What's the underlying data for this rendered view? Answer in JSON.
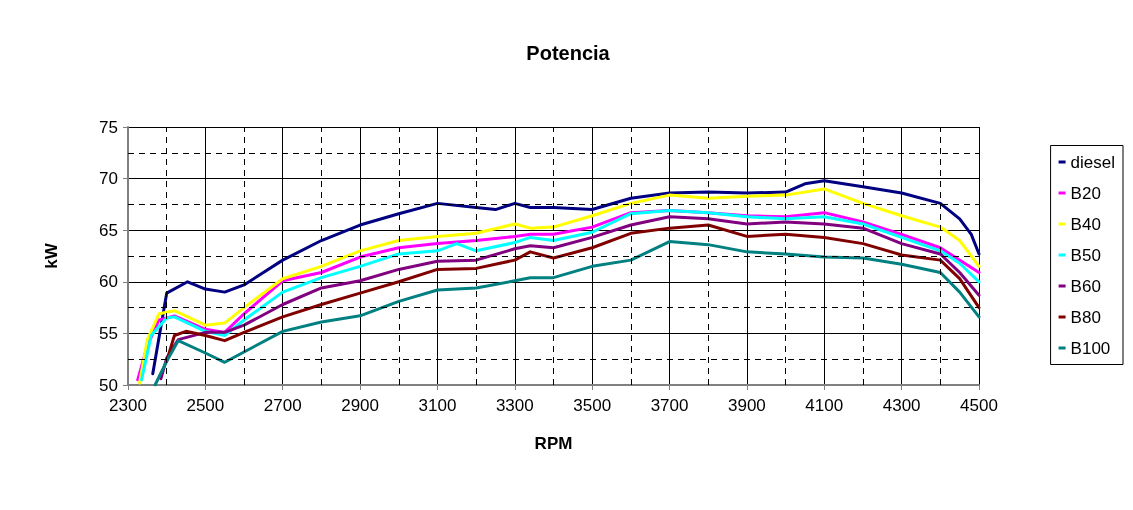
{
  "chart_data": {
    "type": "line",
    "title": "Potencia",
    "xlabel": "RPM",
    "ylabel": "kW",
    "xlim": [
      2300,
      4500
    ],
    "ylim": [
      50,
      75
    ],
    "xticks": [
      2300,
      2500,
      2700,
      2900,
      3100,
      3300,
      3500,
      3700,
      3900,
      4100,
      4300,
      4500
    ],
    "yticks": [
      50,
      55,
      60,
      65,
      70,
      75
    ],
    "grid": true,
    "legend": "right",
    "marker": "none",
    "series": [
      {
        "name": "diesel",
        "color": "#000080",
        "x": [
          2364,
          2400,
          2454,
          2500,
          2550,
          2600,
          2700,
          2800,
          2900,
          3000,
          3100,
          3200,
          3250,
          3300,
          3340,
          3400,
          3500,
          3600,
          3700,
          3800,
          3900,
          4000,
          4050,
          4100,
          4200,
          4300,
          4400,
          4450,
          4480,
          4500
        ],
        "values": [
          51.1,
          58.9,
          60.0,
          59.3,
          59.0,
          59.7,
          62.1,
          64.0,
          65.5,
          66.6,
          67.6,
          67.2,
          67.0,
          67.6,
          67.2,
          67.2,
          67.0,
          68.1,
          68.6,
          68.7,
          68.6,
          68.7,
          69.5,
          69.8,
          69.2,
          68.6,
          67.6,
          66.1,
          64.6,
          62.7
        ]
      },
      {
        "name": "B20",
        "color": "#ff00ff",
        "x": [
          2325,
          2350,
          2380,
          2420,
          2500,
          2550,
          2600,
          2700,
          2800,
          2900,
          3000,
          3100,
          3200,
          3300,
          3340,
          3400,
          3500,
          3600,
          3700,
          3800,
          3900,
          4000,
          4100,
          4200,
          4300,
          4400,
          4500
        ],
        "values": [
          50.5,
          53.8,
          56.3,
          56.7,
          55.4,
          55.1,
          56.9,
          60.1,
          60.9,
          62.4,
          63.3,
          63.7,
          64.0,
          64.4,
          64.6,
          64.6,
          65.3,
          66.7,
          66.9,
          66.7,
          66.4,
          66.3,
          66.7,
          65.8,
          64.6,
          63.3,
          60.9
        ]
      },
      {
        "name": "B40",
        "color": "#ffff00",
        "x": [
          2330,
          2350,
          2380,
          2420,
          2500,
          2550,
          2600,
          2700,
          2800,
          2900,
          3000,
          3100,
          3200,
          3300,
          3340,
          3400,
          3500,
          3600,
          3700,
          3800,
          3900,
          4000,
          4100,
          4200,
          4300,
          4400,
          4450,
          4500
        ],
        "values": [
          50.2,
          54.4,
          56.9,
          57.2,
          55.8,
          56.0,
          57.5,
          60.3,
          61.5,
          63.0,
          64.0,
          64.4,
          64.7,
          65.6,
          65.2,
          65.3,
          66.4,
          67.6,
          68.4,
          68.1,
          68.3,
          68.4,
          69.0,
          67.6,
          66.4,
          65.3,
          64.0,
          61.5
        ]
      },
      {
        "name": "B50",
        "color": "#00ffff",
        "x": [
          2335,
          2360,
          2400,
          2420,
          2500,
          2550,
          2600,
          2700,
          2800,
          2900,
          3000,
          3100,
          3150,
          3200,
          3300,
          3340,
          3400,
          3500,
          3600,
          3700,
          3800,
          3900,
          4000,
          4100,
          4200,
          4300,
          4400,
          4450,
          4500
        ],
        "values": [
          50.5,
          54.8,
          56.5,
          56.6,
          55.2,
          54.8,
          56.3,
          59.0,
          60.4,
          61.5,
          62.7,
          63.0,
          63.7,
          63.0,
          63.8,
          64.3,
          64.0,
          64.8,
          66.6,
          66.9,
          66.7,
          66.3,
          66.1,
          66.3,
          65.6,
          64.3,
          63.0,
          61.8,
          60.0
        ]
      },
      {
        "name": "B60",
        "color": "#800080",
        "x": [
          2385,
          2400,
          2430,
          2500,
          2550,
          2600,
          2700,
          2800,
          2900,
          3000,
          3100,
          3200,
          3300,
          3340,
          3400,
          3500,
          3600,
          3700,
          3800,
          3900,
          4000,
          4100,
          4200,
          4300,
          4400,
          4450,
          4500
        ],
        "values": [
          50.6,
          52.6,
          54.4,
          55.1,
          55.1,
          55.8,
          57.8,
          59.4,
          60.1,
          61.2,
          62.0,
          62.1,
          63.2,
          63.5,
          63.3,
          64.3,
          65.5,
          66.3,
          66.1,
          65.6,
          65.8,
          65.6,
          65.2,
          63.7,
          62.7,
          60.9,
          58.7
        ]
      },
      {
        "name": "B80",
        "color": "#800000",
        "x": [
          2400,
          2420,
          2450,
          2500,
          2550,
          2600,
          2700,
          2800,
          2900,
          3000,
          3100,
          3200,
          3300,
          3340,
          3400,
          3500,
          3600,
          3700,
          3800,
          3900,
          4000,
          4100,
          4200,
          4300,
          4400,
          4450,
          4500
        ],
        "values": [
          52.3,
          54.8,
          55.2,
          54.8,
          54.3,
          55.1,
          56.6,
          57.8,
          58.9,
          60.0,
          61.2,
          61.3,
          62.1,
          62.9,
          62.3,
          63.3,
          64.7,
          65.2,
          65.5,
          64.4,
          64.6,
          64.3,
          63.7,
          62.6,
          62.1,
          60.3,
          57.5
        ]
      },
      {
        "name": "B100",
        "color": "#008080",
        "x": [
          2370,
          2400,
          2430,
          2500,
          2550,
          2600,
          2700,
          2800,
          2900,
          3000,
          3100,
          3200,
          3300,
          3340,
          3400,
          3500,
          3600,
          3700,
          3800,
          3900,
          4000,
          4100,
          4200,
          4300,
          4400,
          4450,
          4500
        ],
        "values": [
          50.0,
          52.3,
          54.3,
          53.1,
          52.2,
          53.2,
          55.2,
          56.1,
          56.7,
          58.1,
          59.2,
          59.4,
          60.1,
          60.4,
          60.4,
          61.5,
          62.1,
          63.9,
          63.6,
          62.9,
          62.7,
          62.4,
          62.3,
          61.7,
          60.9,
          59.0,
          56.6
        ]
      }
    ]
  }
}
